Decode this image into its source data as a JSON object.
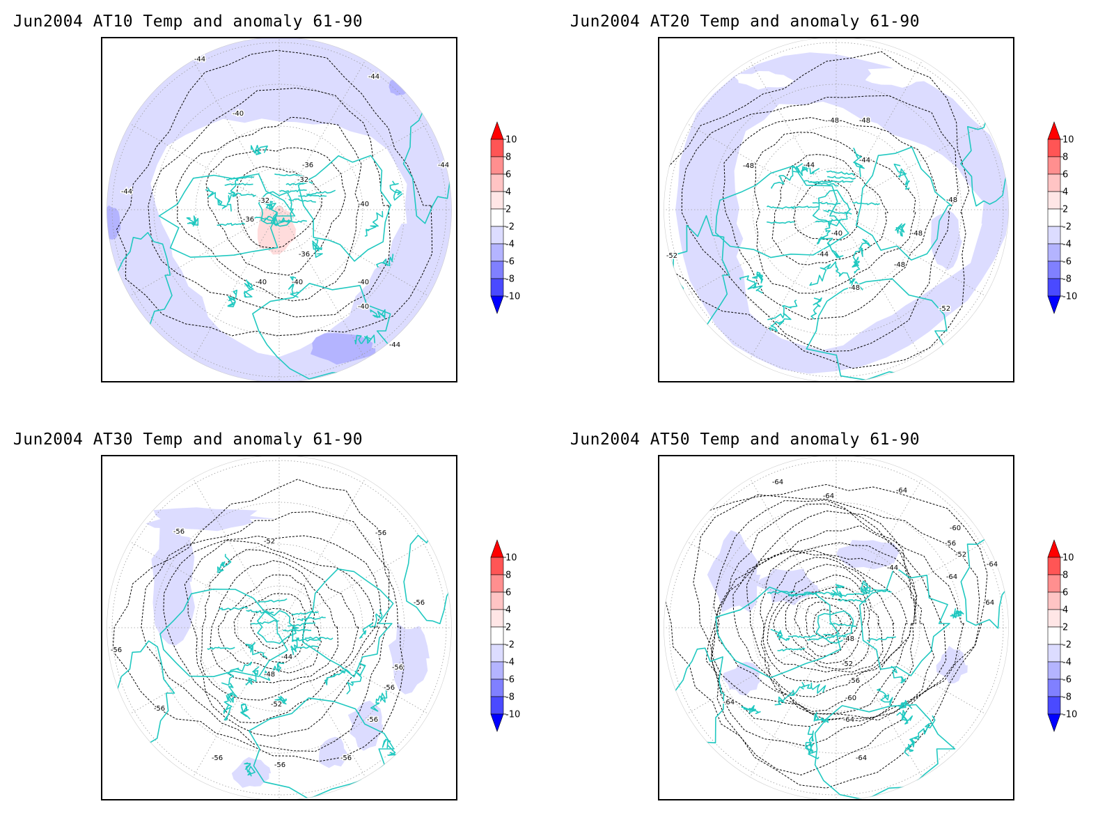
{
  "panels": [
    {
      "title": "Jun2004 AT10 Temp and anomaly 61-90",
      "contour_labels": [
        "-44",
        "-44",
        "-40",
        "-36",
        "-32",
        "-32",
        "-36",
        "-36",
        "-40",
        "-40",
        "-40",
        "-40",
        "-44",
        "-44",
        "-44",
        "-40"
      ]
    },
    {
      "title": "Jun2004 AT20 Temp and anomaly 61-90",
      "contour_labels": [
        "-48",
        "-48",
        "-44",
        "-44",
        "-48",
        "-48",
        "-40",
        "-44",
        "-48",
        "-48",
        "-52",
        "-52",
        "-48"
      ]
    },
    {
      "title": "Jun2004 AT30 Temp and anomaly 61-90",
      "contour_labels": [
        "-56",
        "-52",
        "-56",
        "-56",
        "-44",
        "-48",
        "-52",
        "-56",
        "-56",
        "-56",
        "-56",
        "-56",
        "-56",
        "-56",
        "-56"
      ]
    },
    {
      "title": "Jun2004 AT50 Temp and anomaly 61-90",
      "contour_labels": [
        "-64",
        "-64",
        "-64",
        "-60",
        "-56",
        "-52",
        "-44",
        "-48",
        "-52",
        "-56",
        "-60",
        "-64",
        "-64",
        "-64",
        "-64",
        "-64",
        "-64"
      ]
    }
  ],
  "colorbar": {
    "labels": [
      "10",
      "8",
      "6",
      "4",
      "2",
      "-2",
      "-4",
      "-6",
      "-8",
      "-10"
    ],
    "colors": [
      "#ff0000",
      "#ff5555",
      "#ff8f8f",
      "#ffc4c4",
      "#ffe6e6",
      "#ffffff",
      "#dcdcff",
      "#b4b4ff",
      "#8080ff",
      "#4a4aff",
      "#0000ff"
    ]
  },
  "colors": {
    "coastline": "#20c8c0",
    "anomaly_neg_light": "#dcdcff",
    "anomaly_neg_mid": "#b4b4ff",
    "anomaly_pos_light": "#ffdcdc"
  }
}
